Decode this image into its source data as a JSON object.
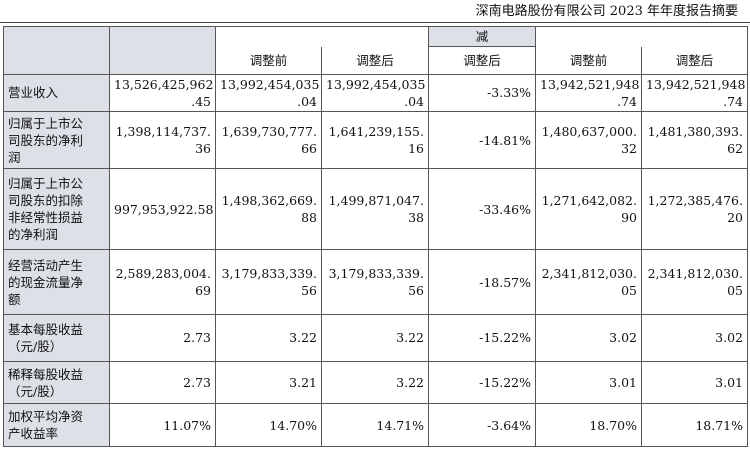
{
  "header": {
    "title": "深南电路股份有限公司 2023 年年度报告摘要"
  },
  "table": {
    "top_header": [
      "",
      "",
      "",
      "",
      "减",
      ""
    ],
    "sub_header": [
      "",
      "",
      "调整前",
      "调整后",
      "调整后",
      "调整前",
      "调整后"
    ],
    "rows": [
      {
        "label": [
          "营业收入"
        ],
        "values": [
          [
            "13,526,425,962",
            ".45"
          ],
          [
            "13,992,454,035",
            ".04"
          ],
          [
            "13,992,454,035",
            ".04"
          ],
          [
            "-3.33%"
          ],
          [
            "13,942,521,948",
            ".74"
          ],
          [
            "13,942,521,948",
            ".74"
          ]
        ]
      },
      {
        "label": [
          "归属于上市公",
          "司股东的净利",
          "润"
        ],
        "values": [
          [
            "1,398,114,737.",
            "36"
          ],
          [
            "1,639,730,777.",
            "66"
          ],
          [
            "1,641,239,155.",
            "16"
          ],
          [
            "-14.81%"
          ],
          [
            "1,480,637,000.",
            "32"
          ],
          [
            "1,481,380,393.",
            "62"
          ]
        ]
      },
      {
        "label": [
          "归属于上市公",
          "司股东的扣除",
          "非经常性损益",
          "的净利润"
        ],
        "values": [
          [
            "997,953,922.58"
          ],
          [
            "1,498,362,669.",
            "88"
          ],
          [
            "1,499,871,047.",
            "38"
          ],
          [
            "-33.46%"
          ],
          [
            "1,271,642,082.",
            "90"
          ],
          [
            "1,272,385,476.",
            "20"
          ]
        ]
      },
      {
        "label": [
          "经营活动产生",
          "的现金流量净",
          "额"
        ],
        "values": [
          [
            "2,589,283,004.",
            "69"
          ],
          [
            "3,179,833,339.",
            "56"
          ],
          [
            "3,179,833,339.",
            "56"
          ],
          [
            "-18.57%"
          ],
          [
            "2,341,812,030.",
            "05"
          ],
          [
            "2,341,812,030.",
            "05"
          ]
        ]
      },
      {
        "label": [
          "基本每股收益",
          "（元/股）"
        ],
        "values": [
          [
            "2.73"
          ],
          [
            "3.22"
          ],
          [
            "3.22"
          ],
          [
            "-15.22%"
          ],
          [
            "3.02"
          ],
          [
            "3.02"
          ]
        ]
      },
      {
        "label": [
          "稀释每股收益",
          "（元/股）"
        ],
        "values": [
          [
            "2.73"
          ],
          [
            "3.21"
          ],
          [
            "3.22"
          ],
          [
            "-15.22%"
          ],
          [
            "3.01"
          ],
          [
            "3.01"
          ]
        ]
      },
      {
        "label": [
          "加权平均净资",
          "产收益率"
        ],
        "values": [
          [
            "11.07%"
          ],
          [
            "14.70%"
          ],
          [
            "14.71%"
          ],
          [
            "-3.64%"
          ],
          [
            "18.70%"
          ],
          [
            "18.71%"
          ]
        ]
      }
    ]
  }
}
